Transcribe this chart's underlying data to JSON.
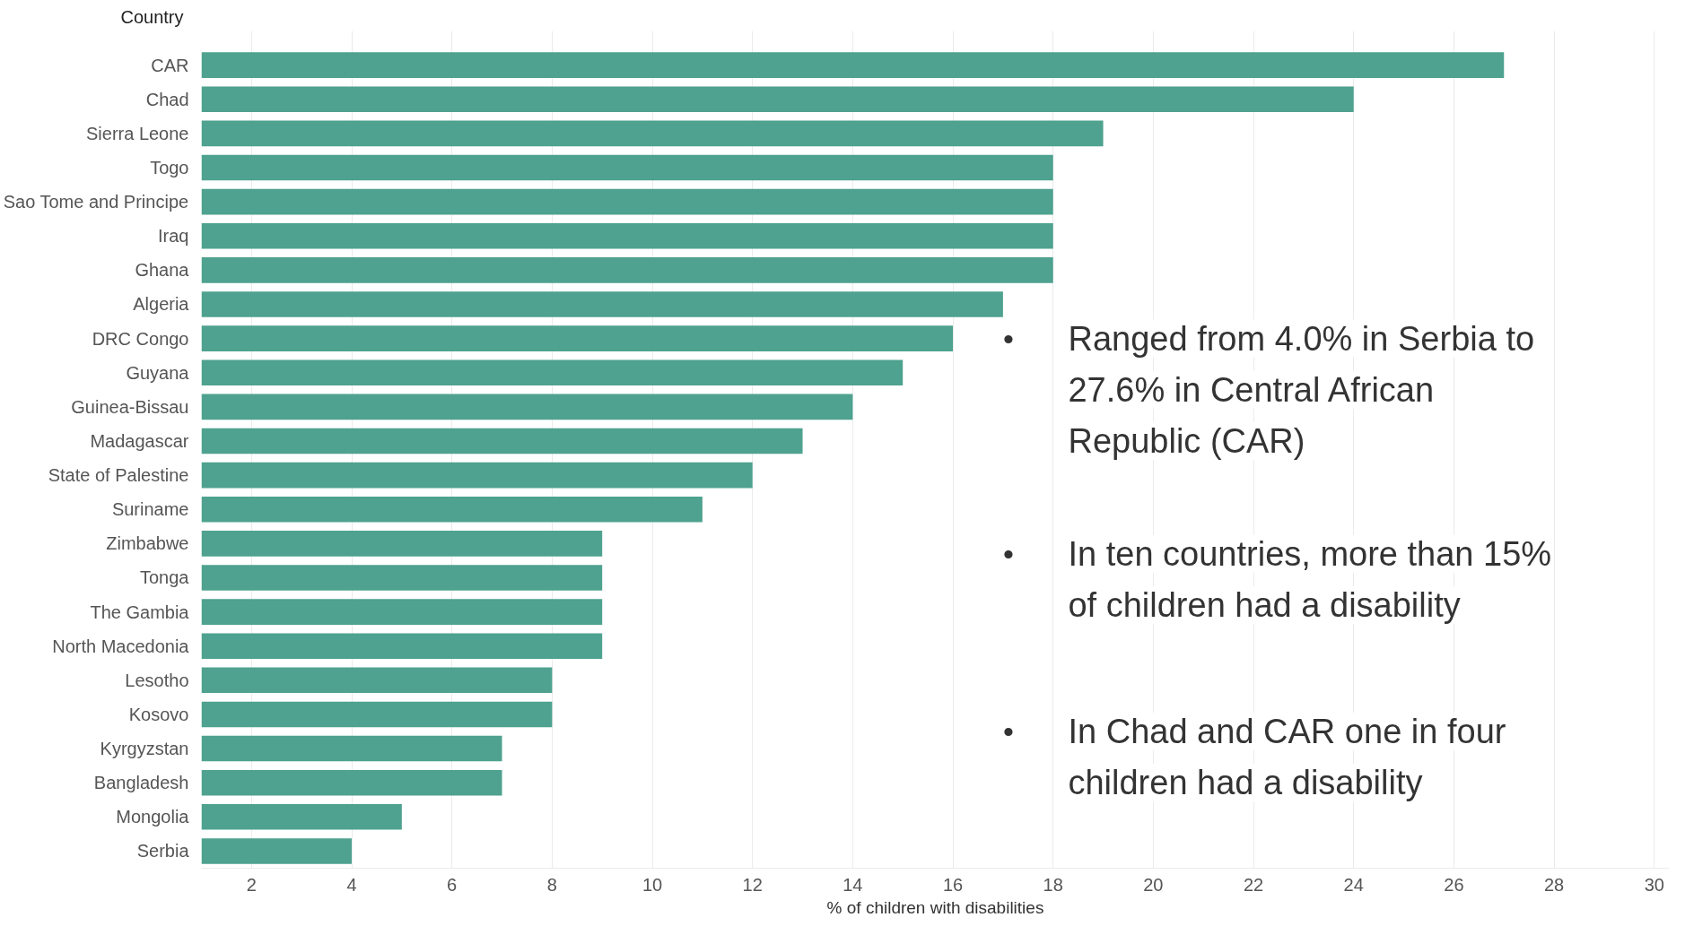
{
  "chart_data": {
    "type": "bar",
    "orientation": "horizontal",
    "ylabel": "Country",
    "xlabel": "% of children with disabilities",
    "categories": [
      "CAR",
      "Chad",
      "Sierra Leone",
      "Togo",
      "Sao Tome and Principe",
      "Iraq",
      "Ghana",
      "Algeria",
      "DRC Congo",
      "Guyana",
      "Guinea-Bissau",
      "Madagascar",
      "State of Palestine",
      "Suriname",
      "Zimbabwe",
      "Tonga",
      "The Gambia",
      "North Macedonia",
      "Lesotho",
      "Kosovo",
      "Kyrgyzstan",
      "Bangladesh",
      "Mongolia",
      "Serbia"
    ],
    "values": [
      27,
      24,
      19,
      18,
      18,
      18,
      18,
      17,
      16,
      15,
      14,
      13,
      12,
      11,
      9,
      9,
      9,
      9,
      8,
      8,
      7,
      7,
      5,
      4
    ],
    "color": "#4ea28f",
    "xlim": [
      1,
      30.3
    ],
    "xticks": [
      2,
      4,
      6,
      8,
      10,
      12,
      14,
      16,
      18,
      20,
      22,
      24,
      26,
      28,
      30
    ],
    "grid": "x",
    "annotations": [
      "• Ranged from 4.0% in Serbia to 27.6% in Central African Republic (CAR)",
      "• In ten countries, more than 15% of children had a disability",
      "• In Chad and CAR one in four children had a disability"
    ]
  }
}
